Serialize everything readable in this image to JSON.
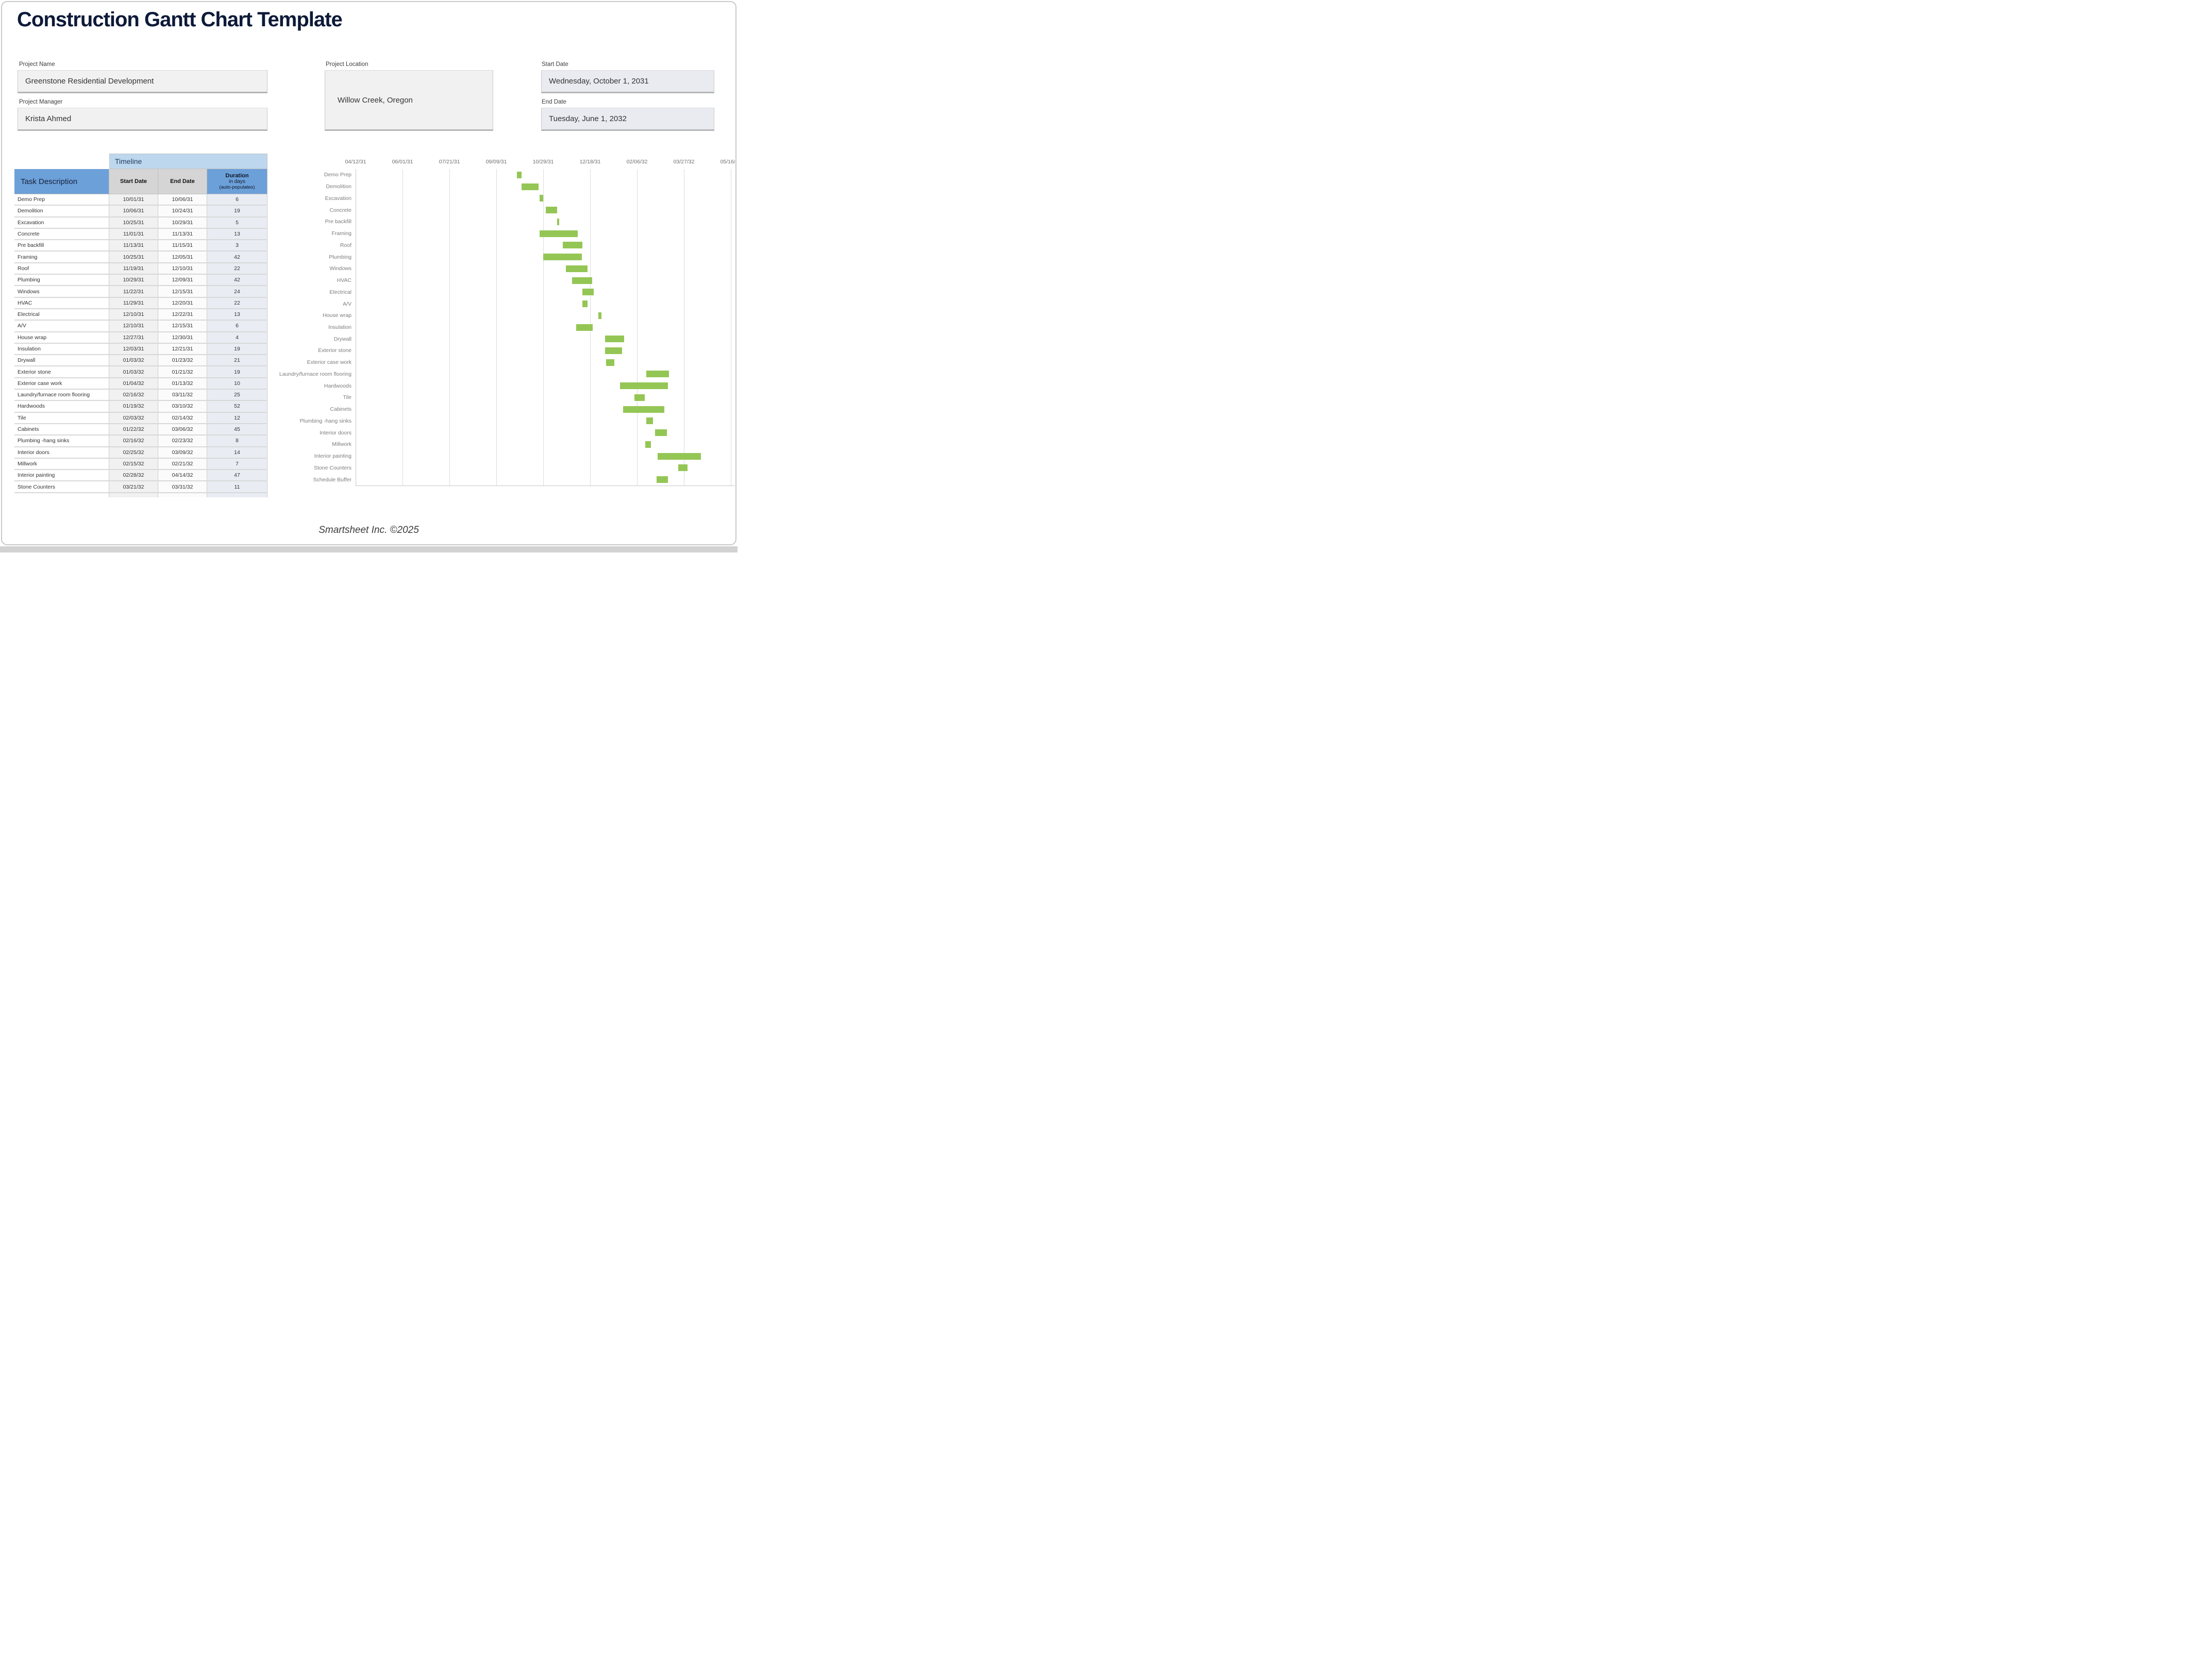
{
  "page": {
    "title": "Construction Gantt Chart Template",
    "footer": "Smartsheet Inc. ©2025"
  },
  "form": {
    "project_name": {
      "label": "Project Name",
      "value": "Greenstone Residential Development"
    },
    "project_manager": {
      "label": "Project Manager",
      "value": "Krista Ahmed"
    },
    "project_location": {
      "label": "Project Location",
      "value": "Willow Creek, Oregon"
    },
    "start_date": {
      "label": "Start Date",
      "value": "Wednesday, October 1, 2031"
    },
    "end_date": {
      "label": "End Date",
      "value": "Tuesday, June 1, 2032"
    }
  },
  "table": {
    "timeline_header": "Timeline",
    "headers": {
      "task": "Task Description",
      "start": "Start Date",
      "end": "End Date",
      "duration": {
        "line1": "Duration",
        "line2": "in days",
        "line3": "(auto-populates)"
      }
    }
  },
  "chart_data": {
    "type": "bar",
    "variant": "gantt-timeline",
    "bar_color": "#94c655",
    "grid": "vertical-on",
    "legend": "none",
    "axis_ticks": [
      "04/12/31",
      "06/01/31",
      "07/21/31",
      "09/09/31",
      "10/29/31",
      "12/18/31",
      "02/06/32",
      "03/27/32",
      "05/16/32"
    ],
    "axis_start": "04/12/31",
    "tick_interval_days": 50,
    "tasks": [
      {
        "name": "Demo Prep",
        "start": "10/01/31",
        "end": "10/06/31",
        "duration": "6",
        "in_table": true
      },
      {
        "name": "Demolition",
        "start": "10/06/31",
        "end": "10/24/31",
        "duration": "19",
        "in_table": true
      },
      {
        "name": "Excavation",
        "start": "10/25/31",
        "end": "10/29/31",
        "duration": "5",
        "in_table": true
      },
      {
        "name": "Concrete",
        "start": "11/01/31",
        "end": "11/13/31",
        "duration": "13",
        "in_table": true
      },
      {
        "name": "Pre backfill",
        "start": "11/13/31",
        "end": "11/15/31",
        "duration": "3",
        "in_table": true
      },
      {
        "name": "Framing",
        "start": "10/25/31",
        "end": "12/05/31",
        "duration": "42",
        "in_table": true
      },
      {
        "name": "Roof",
        "start": "11/19/31",
        "end": "12/10/31",
        "duration": "22",
        "in_table": true
      },
      {
        "name": "Plumbing",
        "start": "10/29/31",
        "end": "12/09/31",
        "duration": "42",
        "in_table": true
      },
      {
        "name": "Windows",
        "start": "11/22/31",
        "end": "12/15/31",
        "duration": "24",
        "in_table": true
      },
      {
        "name": "HVAC",
        "start": "11/29/31",
        "end": "12/20/31",
        "duration": "22",
        "in_table": true
      },
      {
        "name": "Electrical",
        "start": "12/10/31",
        "end": "12/22/31",
        "duration": "13",
        "in_table": true
      },
      {
        "name": "A/V",
        "start": "12/10/31",
        "end": "12/15/31",
        "duration": "6",
        "in_table": true
      },
      {
        "name": "House wrap",
        "start": "12/27/31",
        "end": "12/30/31",
        "duration": "4",
        "in_table": true
      },
      {
        "name": "Insulation",
        "start": "12/03/31",
        "end": "12/21/31",
        "duration": "19",
        "in_table": true
      },
      {
        "name": "Drywall",
        "start": "01/03/32",
        "end": "01/23/32",
        "duration": "21",
        "in_table": true
      },
      {
        "name": "Exterior stone",
        "start": "01/03/32",
        "end": "01/21/32",
        "duration": "19",
        "in_table": true
      },
      {
        "name": "Exterior case work",
        "start": "01/04/32",
        "end": "01/13/32",
        "duration": "10",
        "in_table": true
      },
      {
        "name": "Laundry/furnace room flooring",
        "start": "02/16/32",
        "end": "03/11/32",
        "duration": "25",
        "in_table": true
      },
      {
        "name": "Hardwoods",
        "start": "01/19/32",
        "end": "03/10/32",
        "duration": "52",
        "in_table": true
      },
      {
        "name": "Tile",
        "start": "02/03/32",
        "end": "02/14/32",
        "duration": "12",
        "in_table": true
      },
      {
        "name": "Cabinets",
        "start": "01/22/32",
        "end": "03/06/32",
        "duration": "45",
        "in_table": true
      },
      {
        "name": "Plumbing -hang sinks",
        "start": "02/16/32",
        "end": "02/23/32",
        "duration": "8",
        "in_table": true
      },
      {
        "name": "Interior doors",
        "start": "02/25/32",
        "end": "03/09/32",
        "duration": "14",
        "in_table": true
      },
      {
        "name": "Millwork",
        "start": "02/15/32",
        "end": "02/21/32",
        "duration": "7",
        "in_table": true
      },
      {
        "name": "Interior painting",
        "start": "02/28/32",
        "end": "04/14/32",
        "duration": "47",
        "in_table": true
      },
      {
        "name": "Stone Counters",
        "start": "03/21/32",
        "end": "03/31/32",
        "duration": "11",
        "in_table": true
      },
      {
        "name": "Schedule Buffer",
        "start": "02/27/32",
        "end": "03/10/32",
        "duration": null,
        "in_table": false
      }
    ]
  }
}
